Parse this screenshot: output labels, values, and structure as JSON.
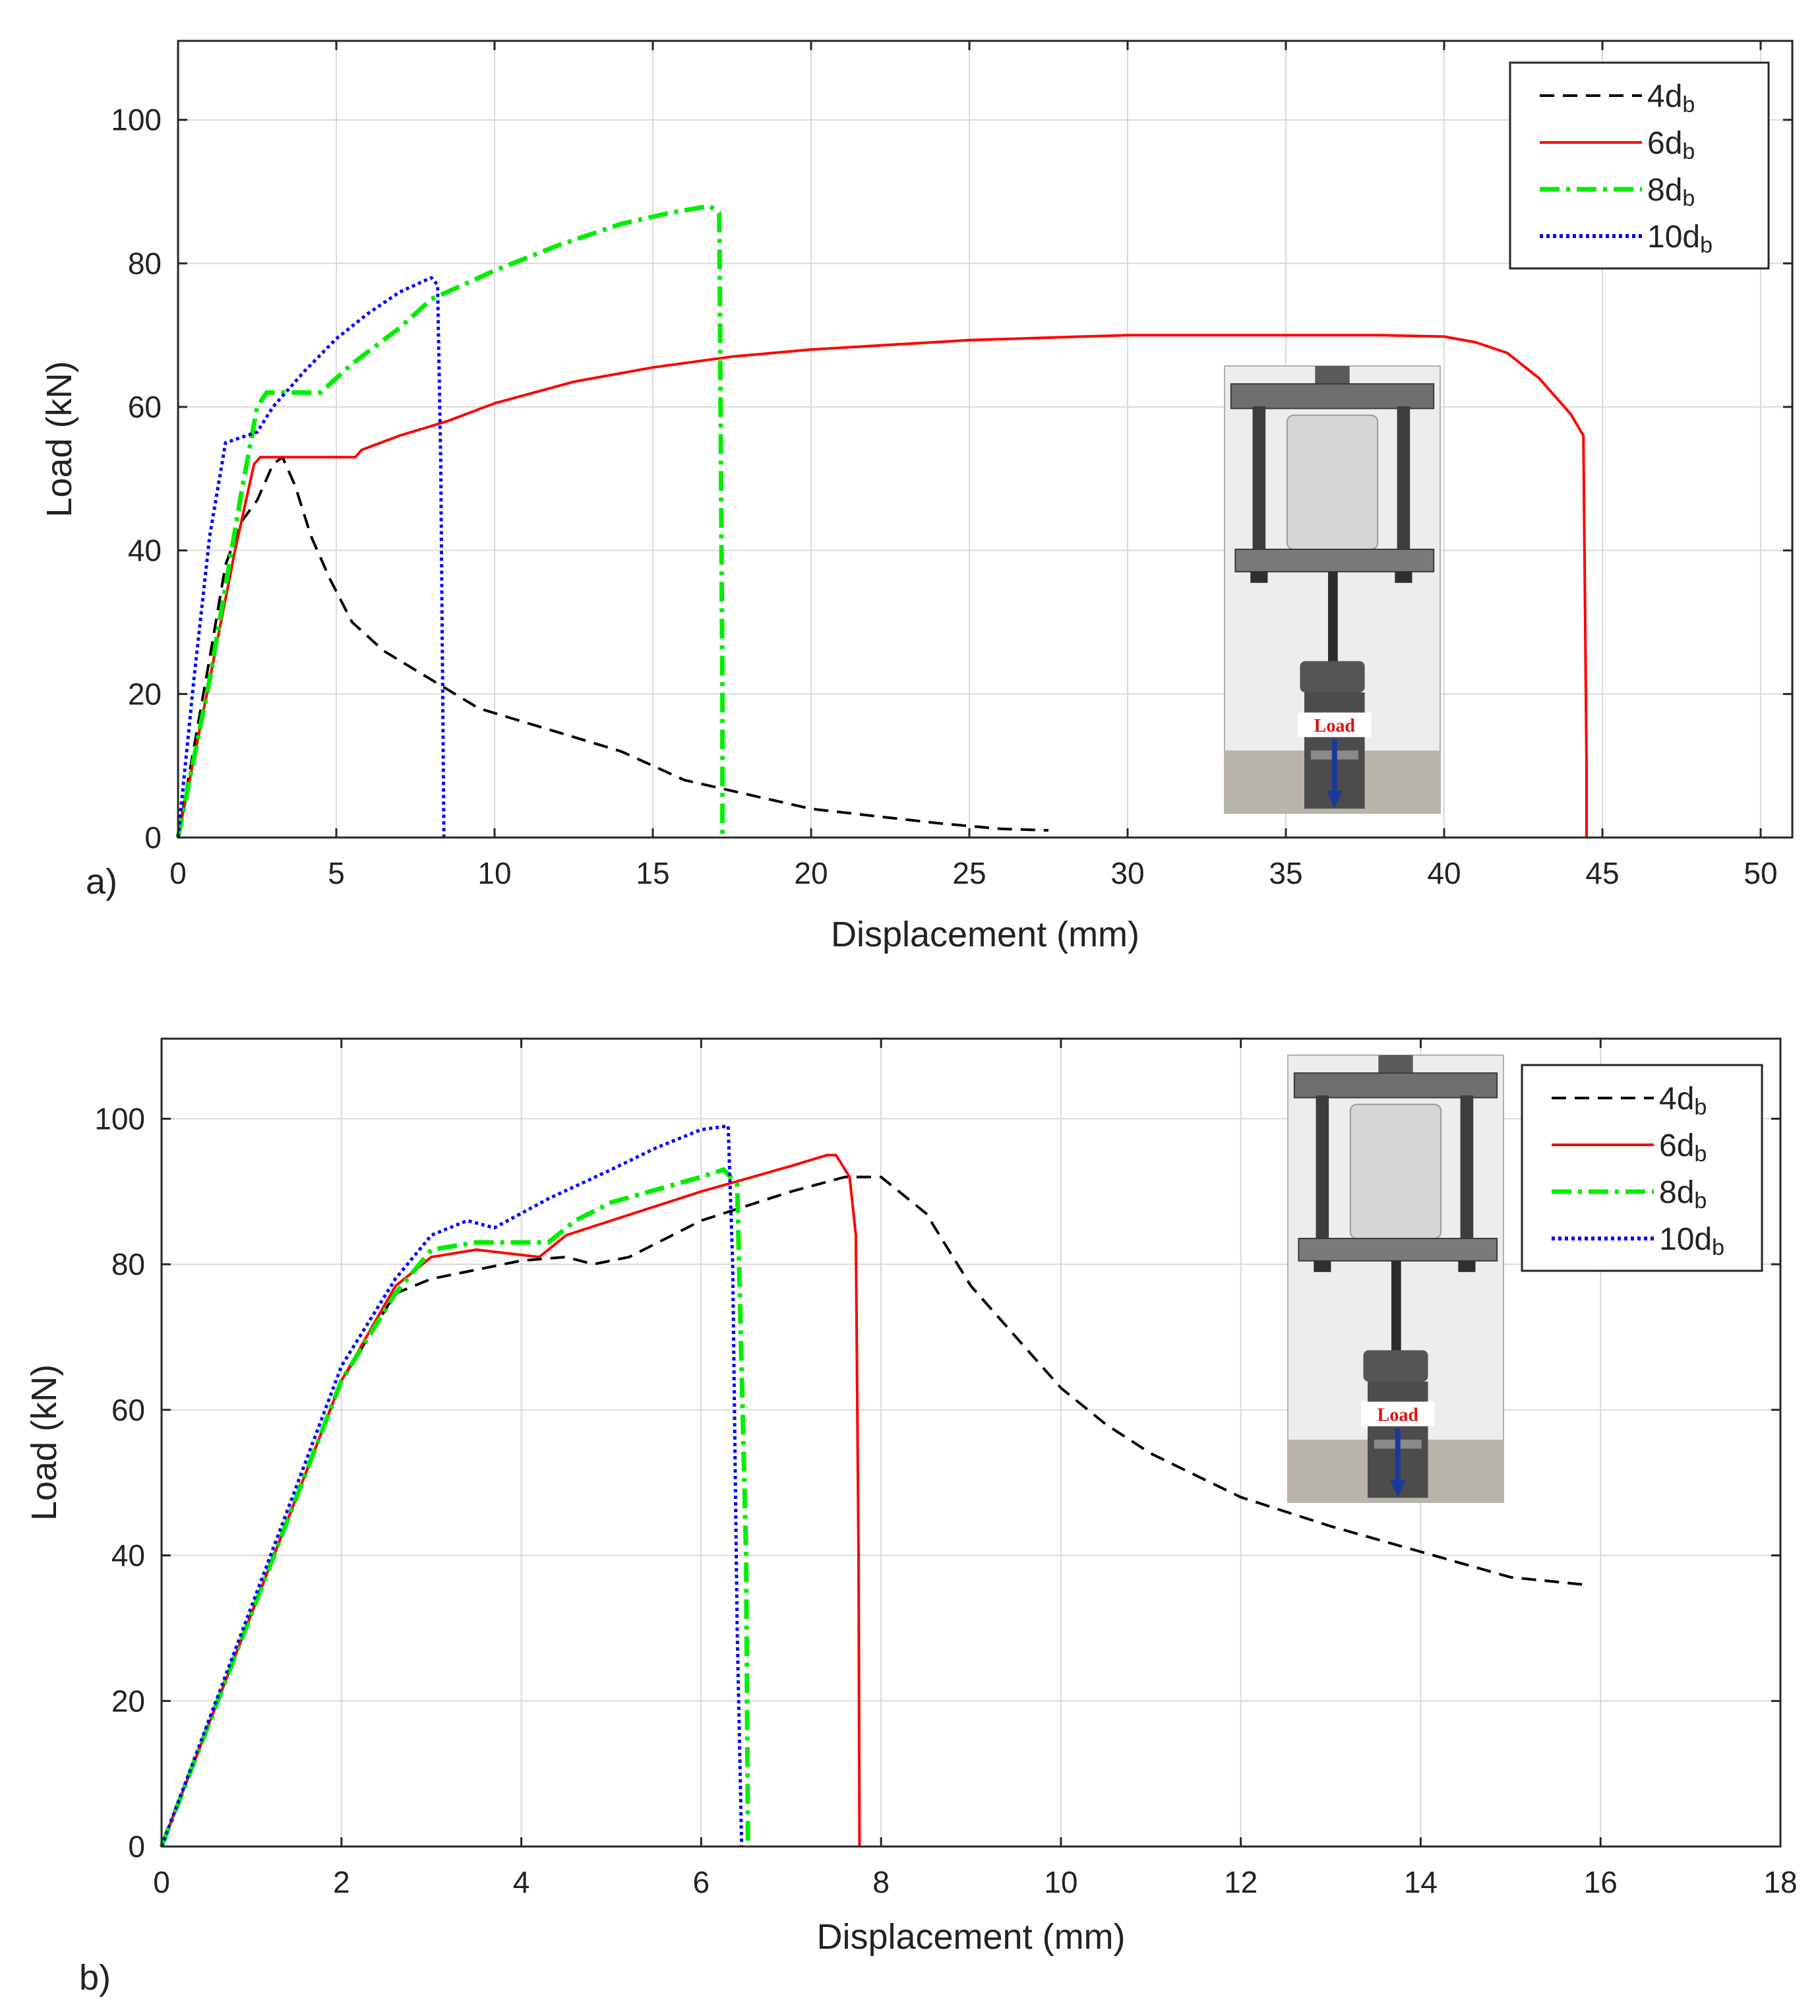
{
  "chart_data": [
    {
      "panel_label": "a)",
      "type": "line",
      "xlabel": "Displacement (mm)",
      "ylabel": "Load (kN)",
      "xlim": [
        0,
        51
      ],
      "ylim": [
        0,
        111
      ],
      "xticks": [
        0,
        5,
        10,
        15,
        20,
        25,
        30,
        35,
        40,
        45,
        50
      ],
      "yticks": [
        0,
        20,
        40,
        60,
        80,
        100
      ],
      "grid": true,
      "legend_position": "top-right",
      "inset_photo": {
        "position": "bottom-right",
        "label": "Load"
      },
      "series": [
        {
          "name": "4d",
          "subscript": "b",
          "color": "#000000",
          "style": "dashed",
          "points": [
            [
              0,
              0
            ],
            [
              1,
              25
            ],
            [
              1.5,
              38
            ],
            [
              2,
              44
            ],
            [
              2.5,
              47
            ],
            [
              3,
              52
            ],
            [
              3.3,
              53
            ],
            [
              3.7,
              49
            ],
            [
              4.2,
              42
            ],
            [
              4.8,
              36
            ],
            [
              5.5,
              30
            ],
            [
              6.5,
              26
            ],
            [
              8,
              22
            ],
            [
              9.5,
              18
            ],
            [
              11,
              16
            ],
            [
              12.5,
              14
            ],
            [
              14,
              12
            ],
            [
              16,
              8
            ],
            [
              18,
              6
            ],
            [
              20,
              4
            ],
            [
              22,
              3
            ],
            [
              24,
              2
            ],
            [
              26,
              1.2
            ],
            [
              27.5,
              1
            ]
          ]
        },
        {
          "name": "6d",
          "subscript": "b",
          "color": "#ff0000",
          "style": "solid",
          "points": [
            [
              0,
              0
            ],
            [
              1,
              22
            ],
            [
              1.8,
              40
            ],
            [
              2.4,
              52
            ],
            [
              2.6,
              53
            ],
            [
              5.6,
              53
            ],
            [
              5.8,
              54
            ],
            [
              7,
              56
            ],
            [
              8.5,
              58
            ],
            [
              10,
              60.5
            ],
            [
              12.5,
              63.5
            ],
            [
              15,
              65.5
            ],
            [
              17.5,
              67
            ],
            [
              20,
              68
            ],
            [
              25,
              69.3
            ],
            [
              30,
              70
            ],
            [
              35,
              70
            ],
            [
              38,
              70
            ],
            [
              40,
              69.8
            ],
            [
              41,
              69
            ],
            [
              42,
              67.5
            ],
            [
              43,
              64
            ],
            [
              44,
              59
            ],
            [
              44.4,
              56
            ],
            [
              44.5,
              10
            ],
            [
              44.5,
              0
            ]
          ]
        },
        {
          "name": "8d",
          "subscript": "b",
          "color": "#00ee00",
          "style": "dashdot",
          "points": [
            [
              0,
              0
            ],
            [
              1,
              22
            ],
            [
              2,
              48
            ],
            [
              2.5,
              60
            ],
            [
              2.8,
              62
            ],
            [
              4.5,
              62
            ],
            [
              5.5,
              66
            ],
            [
              7,
              71
            ],
            [
              8,
              75
            ],
            [
              10,
              79
            ],
            [
              12,
              82.5
            ],
            [
              14,
              85.5
            ],
            [
              15.5,
              87
            ],
            [
              16.8,
              88
            ],
            [
              17.1,
              87
            ],
            [
              17.2,
              20
            ],
            [
              17.2,
              0
            ]
          ]
        },
        {
          "name": "10d",
          "subscript": "b",
          "color": "#0000ff",
          "style": "dotted",
          "points": [
            [
              0,
              0
            ],
            [
              0.5,
              22
            ],
            [
              1,
              42
            ],
            [
              1.5,
              55
            ],
            [
              2.5,
              56.5
            ],
            [
              3,
              60
            ],
            [
              4,
              65
            ],
            [
              5,
              69.5
            ],
            [
              6,
              73
            ],
            [
              7,
              76
            ],
            [
              8,
              78
            ],
            [
              8.2,
              77
            ],
            [
              8.3,
              52
            ],
            [
              8.4,
              0
            ]
          ]
        }
      ]
    },
    {
      "panel_label": "b)",
      "type": "line",
      "xlabel": "Displacement (mm)",
      "ylabel": "Load (kN)",
      "xlim": [
        0,
        18
      ],
      "ylim": [
        0,
        111
      ],
      "xticks": [
        0,
        2,
        4,
        6,
        8,
        10,
        12,
        14,
        16,
        18
      ],
      "yticks": [
        0,
        20,
        40,
        60,
        80,
        100
      ],
      "grid": true,
      "legend_position": "top-right",
      "inset_photo": {
        "position": "top-right",
        "label": "Load"
      },
      "series": [
        {
          "name": "4d",
          "subscript": "b",
          "color": "#000000",
          "style": "dashed",
          "points": [
            [
              0,
              0
            ],
            [
              1,
              32
            ],
            [
              2,
              64
            ],
            [
              2.6,
              76
            ],
            [
              3,
              78
            ],
            [
              4,
              80.5
            ],
            [
              4.5,
              81
            ],
            [
              4.8,
              80
            ],
            [
              5.2,
              81
            ],
            [
              6,
              86
            ],
            [
              7,
              90
            ],
            [
              7.6,
              92
            ],
            [
              8,
              92
            ],
            [
              8.5,
              87
            ],
            [
              9,
              77
            ],
            [
              9.5,
              70
            ],
            [
              10,
              63
            ],
            [
              10.5,
              58
            ],
            [
              11,
              54
            ],
            [
              12,
              48
            ],
            [
              13,
              44
            ],
            [
              14,
              40.5
            ],
            [
              15,
              37
            ],
            [
              15.8,
              36
            ]
          ]
        },
        {
          "name": "6d",
          "subscript": "b",
          "color": "#ff0000",
          "style": "solid",
          "points": [
            [
              0,
              0
            ],
            [
              1,
              32
            ],
            [
              2,
              64
            ],
            [
              2.6,
              77
            ],
            [
              3,
              81
            ],
            [
              3.5,
              82
            ],
            [
              4.2,
              81
            ],
            [
              4.5,
              84
            ],
            [
              5,
              86
            ],
            [
              6,
              90
            ],
            [
              7,
              93.5
            ],
            [
              7.4,
              95
            ],
            [
              7.5,
              95
            ],
            [
              7.65,
              92
            ],
            [
              7.72,
              84
            ],
            [
              7.75,
              40
            ],
            [
              7.76,
              0
            ]
          ]
        },
        {
          "name": "8d",
          "subscript": "b",
          "color": "#00ee00",
          "style": "dashdot",
          "points": [
            [
              0,
              0
            ],
            [
              1,
              32
            ],
            [
              2,
              64
            ],
            [
              2.6,
              76
            ],
            [
              3,
              82
            ],
            [
              3.5,
              83
            ],
            [
              4.3,
              83
            ],
            [
              4.6,
              86
            ],
            [
              5,
              88.5
            ],
            [
              6,
              92
            ],
            [
              6.25,
              93
            ],
            [
              6.4,
              91
            ],
            [
              6.5,
              40
            ],
            [
              6.52,
              0
            ]
          ]
        },
        {
          "name": "10d",
          "subscript": "b",
          "color": "#0000ff",
          "style": "dotted",
          "points": [
            [
              0,
              0
            ],
            [
              1,
              33
            ],
            [
              2,
              66
            ],
            [
              2.6,
              78
            ],
            [
              3,
              84
            ],
            [
              3.4,
              86
            ],
            [
              3.7,
              85
            ],
            [
              4.3,
              89
            ],
            [
              5,
              93
            ],
            [
              5.5,
              96
            ],
            [
              6,
              98.5
            ],
            [
              6.3,
              99
            ],
            [
              6.35,
              80
            ],
            [
              6.4,
              30
            ],
            [
              6.45,
              0
            ]
          ]
        }
      ]
    }
  ]
}
